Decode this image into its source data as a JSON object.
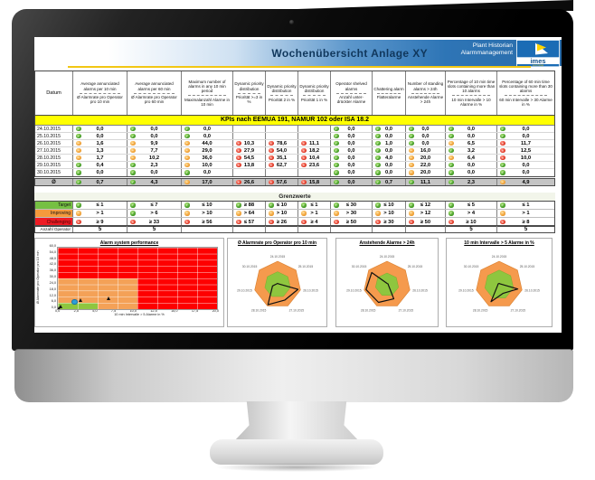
{
  "header": {
    "title": "Wochenübersicht Anlage XY",
    "brand_line1": "Plant Historian",
    "brand_line2": "Alarmmanagement",
    "logo_text": "imes",
    "logo_sub": "SOLUTIONS"
  },
  "colors": {
    "header_blue": "#2e75b6",
    "kpi_yellow": "#ffff00",
    "target_green": "#76c043",
    "improving_orange": "#f59a3c",
    "challenging_red": "#ee1c25",
    "region_green": "#8ec63f",
    "region_orange": "#f4a157",
    "region_red": "#fe0000",
    "point_blue": "#2d9fd9"
  },
  "table": {
    "datum_header": "Datum",
    "columns": [
      {
        "en": "Average annunciated alarms per 10 min",
        "de": "Ø Alarmrate pro Operator pro 10 min"
      },
      {
        "en": "Average annunciated alarms per 60 min",
        "de": "Ø Alarmrate pro Operator pro 60 min"
      },
      {
        "en": "Maximum number of alarms in any 10 min period",
        "de": "Maximalanzahl Alarme in 10 min"
      },
      {
        "en": "Dynamic priority distribution",
        "de": "Priorität >=3 in %"
      },
      {
        "en": "Dynamic priority distribution",
        "de": "Priorität 2 in %"
      },
      {
        "en": "Dynamic priority distribution",
        "de": "Priorität 1 in %"
      },
      {
        "en": "Operator shelved alarms",
        "de": "Anzahl unter- drückter Alarme"
      },
      {
        "en": "Chattering alarm",
        "de": "Flatteralarme"
      },
      {
        "en": "Number of standing alarms > 24h",
        "de": "Anstehende Alarme > 24h"
      },
      {
        "en": "Percentage of 10 min time slots containing more than 10 alarms",
        "de": "10 min Intervalle > 10 Alarme in %"
      },
      {
        "en": "Percentage of 60 min time slots containing more than 30 alarms",
        "de": "60 min Intervalle > 30 Alarme in %"
      }
    ],
    "kpi_banner": "KPIs nach EEMUA 191, NAMUR 102 oder ISA 18.2",
    "rows": [
      {
        "date": "24.10.2015",
        "cells": [
          {
            "s": "g",
            "v": "0,0"
          },
          {
            "s": "g",
            "v": "0,0"
          },
          {
            "s": "g",
            "v": "0,0"
          },
          {
            "s": "",
            "v": ""
          },
          {
            "s": "",
            "v": ""
          },
          {
            "s": "",
            "v": ""
          },
          {
            "s": "g",
            "v": "0,0"
          },
          {
            "s": "g",
            "v": "0,0"
          },
          {
            "s": "g",
            "v": "0,0"
          },
          {
            "s": "g",
            "v": "0,0"
          },
          {
            "s": "g",
            "v": "0,0"
          }
        ]
      },
      {
        "date": "25.10.2015",
        "cells": [
          {
            "s": "g",
            "v": "0,0"
          },
          {
            "s": "g",
            "v": "0,0"
          },
          {
            "s": "g",
            "v": "0,0"
          },
          {
            "s": "",
            "v": ""
          },
          {
            "s": "",
            "v": ""
          },
          {
            "s": "",
            "v": ""
          },
          {
            "s": "g",
            "v": "0,0"
          },
          {
            "s": "g",
            "v": "0,0"
          },
          {
            "s": "g",
            "v": "0,0"
          },
          {
            "s": "g",
            "v": "0,0"
          },
          {
            "s": "g",
            "v": "0,0"
          }
        ]
      },
      {
        "date": "26.10.2015",
        "cells": [
          {
            "s": "o",
            "v": "1,6"
          },
          {
            "s": "o",
            "v": "9,9"
          },
          {
            "s": "o",
            "v": "44,0"
          },
          {
            "s": "r",
            "v": "10,3"
          },
          {
            "s": "r",
            "v": "78,6"
          },
          {
            "s": "r",
            "v": "11,1"
          },
          {
            "s": "g",
            "v": "0,0"
          },
          {
            "s": "g",
            "v": "1,0"
          },
          {
            "s": "g",
            "v": "0,0"
          },
          {
            "s": "o",
            "v": "6,5"
          },
          {
            "s": "r",
            "v": "11,7"
          }
        ]
      },
      {
        "date": "27.10.2015",
        "cells": [
          {
            "s": "o",
            "v": "1,3"
          },
          {
            "s": "o",
            "v": "7,7"
          },
          {
            "s": "o",
            "v": "29,0"
          },
          {
            "s": "r",
            "v": "27,9"
          },
          {
            "s": "r",
            "v": "54,0"
          },
          {
            "s": "r",
            "v": "18,2"
          },
          {
            "s": "g",
            "v": "0,0"
          },
          {
            "s": "g",
            "v": "0,0"
          },
          {
            "s": "o",
            "v": "16,0"
          },
          {
            "s": "g",
            "v": "3,2"
          },
          {
            "s": "r",
            "v": "12,5"
          }
        ]
      },
      {
        "date": "28.10.2015",
        "cells": [
          {
            "s": "o",
            "v": "1,7"
          },
          {
            "s": "o",
            "v": "10,2"
          },
          {
            "s": "o",
            "v": "36,0"
          },
          {
            "s": "r",
            "v": "54,5"
          },
          {
            "s": "r",
            "v": "35,1"
          },
          {
            "s": "r",
            "v": "10,4"
          },
          {
            "s": "g",
            "v": "0,0"
          },
          {
            "s": "g",
            "v": "4,0"
          },
          {
            "s": "o",
            "v": "20,0"
          },
          {
            "s": "o",
            "v": "6,4"
          },
          {
            "s": "r",
            "v": "10,0"
          }
        ]
      },
      {
        "date": "29.10.2015",
        "cells": [
          {
            "s": "g",
            "v": "0,4"
          },
          {
            "s": "g",
            "v": "2,3"
          },
          {
            "s": "o",
            "v": "10,0"
          },
          {
            "s": "r",
            "v": "13,8"
          },
          {
            "s": "r",
            "v": "62,7"
          },
          {
            "s": "r",
            "v": "23,6"
          },
          {
            "s": "g",
            "v": "0,0"
          },
          {
            "s": "g",
            "v": "0,0"
          },
          {
            "s": "o",
            "v": "22,0"
          },
          {
            "s": "g",
            "v": "0,0"
          },
          {
            "s": "g",
            "v": "0,0"
          }
        ]
      },
      {
        "date": "30.10.2015",
        "cells": [
          {
            "s": "g",
            "v": "0,0"
          },
          {
            "s": "g",
            "v": "0,0"
          },
          {
            "s": "g",
            "v": "0,0"
          },
          {
            "s": "",
            "v": ""
          },
          {
            "s": "",
            "v": ""
          },
          {
            "s": "",
            "v": ""
          },
          {
            "s": "g",
            "v": "0,0"
          },
          {
            "s": "g",
            "v": "0,0"
          },
          {
            "s": "o",
            "v": "20,0"
          },
          {
            "s": "g",
            "v": "0,0"
          },
          {
            "s": "g",
            "v": "0,0"
          }
        ]
      }
    ],
    "avg_row": {
      "label": "Ø",
      "cells": [
        {
          "s": "g",
          "v": "0,7"
        },
        {
          "s": "g",
          "v": "4,3"
        },
        {
          "s": "o",
          "v": "17,0"
        },
        {
          "s": "r",
          "v": "26,6"
        },
        {
          "s": "r",
          "v": "57,6"
        },
        {
          "s": "r",
          "v": "15,8"
        },
        {
          "s": "g",
          "v": "0,0"
        },
        {
          "s": "g",
          "v": "0,7"
        },
        {
          "s": "g",
          "v": "11,1"
        },
        {
          "s": "g",
          "v": "2,3"
        },
        {
          "s": "o",
          "v": "4,9"
        }
      ]
    }
  },
  "thresholds": {
    "title": "Grenzwerte",
    "rows": [
      {
        "label": "Target",
        "color": "green",
        "cells": [
          {
            "s": "g",
            "v": "≤ 1"
          },
          {
            "s": "g",
            "v": "≤ 7"
          },
          {
            "s": "g",
            "v": "≤ 10"
          },
          {
            "s": "g",
            "v": "≥ 88"
          },
          {
            "s": "g",
            "v": "≤ 10"
          },
          {
            "s": "g",
            "v": "≤ 1"
          },
          {
            "s": "g",
            "v": "≤ 30"
          },
          {
            "s": "g",
            "v": "≤ 10"
          },
          {
            "s": "g",
            "v": "≤ 12"
          },
          {
            "s": "g",
            "v": "≤ 5"
          },
          {
            "s": "g",
            "v": "≤ 1"
          }
        ]
      },
      {
        "label": "Improving",
        "color": "orange",
        "cells": [
          {
            "s": "o",
            "v": "> 1"
          },
          {
            "s": "g",
            "v": "> 6"
          },
          {
            "s": "o",
            "v": "> 10"
          },
          {
            "s": "o",
            "v": "> 64"
          },
          {
            "s": "o",
            "v": "> 10"
          },
          {
            "s": "o",
            "v": "> 1"
          },
          {
            "s": "o",
            "v": "> 30"
          },
          {
            "s": "o",
            "v": "> 10"
          },
          {
            "s": "o",
            "v": "> 12"
          },
          {
            "s": "g",
            "v": "> 4"
          },
          {
            "s": "o",
            "v": "> 1"
          }
        ]
      },
      {
        "label": "Challenging",
        "color": "red",
        "cells": [
          {
            "s": "r",
            "v": "≥ 9"
          },
          {
            "s": "r",
            "v": "≥ 33"
          },
          {
            "s": "r",
            "v": "≥ 56"
          },
          {
            "s": "r",
            "v": "≤ 57"
          },
          {
            "s": "r",
            "v": "≥ 26"
          },
          {
            "s": "r",
            "v": "≥ 4"
          },
          {
            "s": "r",
            "v": "≥ 50"
          },
          {
            "s": "r",
            "v": "≥ 30"
          },
          {
            "s": "r",
            "v": "≥ 50"
          },
          {
            "s": "r",
            "v": "≥ 10"
          },
          {
            "s": "r",
            "v": "≥ 8"
          }
        ]
      }
    ],
    "operator_label": "Anzahl Operator",
    "operator_counts": [
      "5",
      "5",
      "",
      "",
      "",
      "",
      "",
      "",
      "",
      "5",
      "5"
    ]
  },
  "chart_data": [
    {
      "type": "scatter",
      "title": "Alarm system performance",
      "xlabel": "10 min Intervalle  > 5 Alarme in %",
      "ylabel": "Ø Alarmrate pro Operator pro 10 min",
      "xlim": [
        0,
        20
      ],
      "ylim": [
        0,
        60
      ],
      "x_ticks": [
        "0,0",
        "2,5",
        "5,0",
        "7,5",
        "10,0",
        "12,5",
        "15,0",
        "17,5",
        "20,0"
      ],
      "y_ticks": [
        "60,0",
        "54,0",
        "48,0",
        "42,0",
        "36,0",
        "30,0",
        "24,0",
        "18,0",
        "12,0",
        "6,0",
        "0,0"
      ],
      "regions": [
        {
          "color": "green",
          "x": [
            0,
            5
          ],
          "y": [
            0,
            6
          ]
        },
        {
          "color": "orange",
          "x": [
            0,
            10
          ],
          "y": [
            0,
            30
          ]
        },
        {
          "color": "red",
          "x": [
            0,
            20
          ],
          "y": [
            0,
            60
          ]
        }
      ],
      "points": [
        {
          "marker": "triangle",
          "x": 0.2,
          "y": 0.8
        },
        {
          "marker": "triangle",
          "x": 0.4,
          "y": 2.8
        },
        {
          "marker": "circle",
          "x": 2.0,
          "y": 6.0
        },
        {
          "marker": "triangle",
          "x": 2.9,
          "y": 8.5
        },
        {
          "marker": "triangle",
          "x": 6.4,
          "y": 10.5
        }
      ],
      "grid": true
    },
    {
      "type": "radar",
      "title": "Ø Alarmrate pro Operator pro 10 min",
      "categories": [
        "24.10.2015",
        "25.10.2015",
        "26.10.2015",
        "27.10.2015",
        "28.10.2015",
        "29.10.2015",
        "30.10.2015"
      ],
      "values": [
        0.0,
        0.0,
        1.6,
        1.3,
        1.7,
        0.4,
        0.0
      ],
      "scale_max": 1.8,
      "green_max": 1.0
    },
    {
      "type": "radar",
      "title": "Anstehende Alarme > 24h",
      "categories": [
        "24.10.2015",
        "25.10.2015",
        "26.10.2015",
        "27.10.2015",
        "28.10.2015",
        "29.10.2015",
        "30.10.2015"
      ],
      "values": [
        0,
        0,
        0,
        16,
        20,
        22,
        20
      ],
      "scale_max": 24,
      "green_max": 12
    },
    {
      "type": "radar",
      "title": "10 min Intervalle > 5 Alarme in %",
      "categories": [
        "24.10.2015",
        "25.10.2015",
        "26.10.2015",
        "27.10.2015",
        "28.10.2015",
        "29.10.2015",
        "30.10.2015"
      ],
      "values": [
        0.0,
        0.0,
        6.5,
        3.2,
        6.4,
        0.0,
        0.0
      ],
      "scale_max": 8,
      "green_max": 5
    }
  ]
}
